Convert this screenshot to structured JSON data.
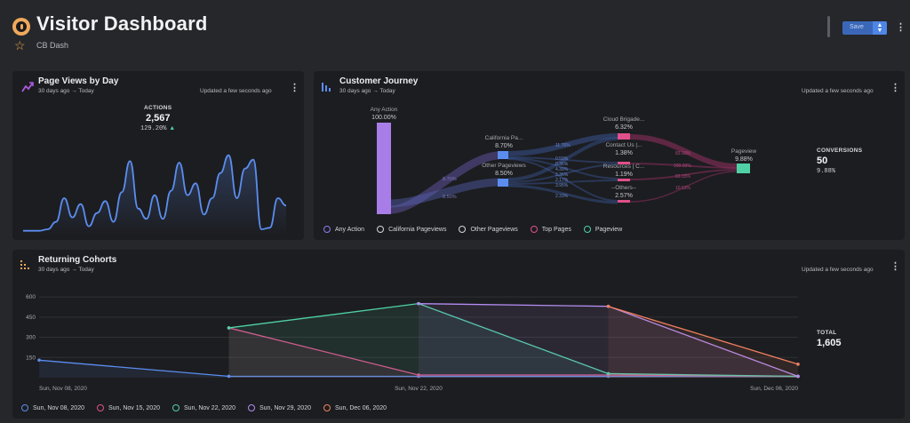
{
  "header": {
    "title": "Visitor Dashboard",
    "subtitle": "CB Dash",
    "save_label": "Save"
  },
  "page_views": {
    "title": "Page Views by Day",
    "range": "30 days ago → Today",
    "updated": "Updated a few seconds ago",
    "kpi_label": "ACTIONS",
    "kpi_value": "2,567",
    "kpi_change": "129.20%",
    "accent": "#5b8def"
  },
  "journey": {
    "title": "Customer Journey",
    "range": "30 days ago → Today",
    "updated": "Updated a few seconds ago",
    "kpi_label": "CONVERSIONS",
    "kpi_value": "50",
    "kpi_sub": "9.88%",
    "nodes": {
      "any": {
        "label": "Any Action",
        "pct": "100.00%"
      },
      "california": {
        "label": "California Pa...",
        "pct": "8.70%"
      },
      "other": {
        "label": "Other Pageviews",
        "pct": "8.50%"
      },
      "cloud": {
        "label": "Cloud Brigade...",
        "pct": "6.32%"
      },
      "contact": {
        "label": "Contact Us |...",
        "pct": "1.38%"
      },
      "resources": {
        "label": "Resources | C...",
        "pct": "1.19%"
      },
      "others": {
        "label": "--Others--",
        "pct": "2.57%"
      },
      "pageview": {
        "label": "Pageview",
        "pct": "9.88%"
      }
    },
    "link_labels": {
      "l1": "8.70%",
      "l2": "8.50%",
      "m1": "11.76%",
      "m2": "0.59%",
      "m3": "0.36%",
      "m4": "4.39%",
      "m5": "3.36%",
      "m6": "2.17%",
      "m7": "3.95%",
      "m8": "2.33%",
      "r1": "83.10%",
      "r2": "100.00%",
      "r3": "83.33%",
      "r4": "10.53%"
    },
    "legend": [
      {
        "label": "Any Action",
        "color": "#8b7cf6"
      },
      {
        "label": "California Pageviews",
        "color": "#d8d8dc"
      },
      {
        "label": "Other Pageviews",
        "color": "#d8d8dc"
      },
      {
        "label": "Top Pages",
        "color": "#e0508a"
      },
      {
        "label": "Pageview",
        "color": "#4fd1a5"
      }
    ]
  },
  "cohorts": {
    "title": "Returning Cohorts",
    "range": "30 days ago → Today",
    "updated": "Updated a few seconds ago",
    "kpi_label": "TOTAL",
    "kpi_value": "1,605",
    "legend": [
      {
        "label": "Sun, Nov 08, 2020",
        "color": "#5b8def"
      },
      {
        "label": "Sun, Nov 15, 2020",
        "color": "#e0508a"
      },
      {
        "label": "Sun, Nov 22, 2020",
        "color": "#4fd1a5"
      },
      {
        "label": "Sun, Nov 29, 2020",
        "color": "#b48cf0"
      },
      {
        "label": "Sun, Dec 06, 2020",
        "color": "#f07f5e"
      }
    ]
  },
  "chart_data": [
    {
      "type": "area",
      "title": "Page Views by Day",
      "x": [
        1,
        2,
        3,
        4,
        5,
        6,
        7,
        8,
        9,
        10,
        11,
        12,
        13,
        14,
        15,
        16,
        17,
        18,
        19,
        20,
        21,
        22,
        23,
        24,
        25,
        26,
        27,
        28,
        29,
        30,
        31,
        32,
        33
      ],
      "values": [
        2,
        2,
        2,
        3,
        8,
        24,
        11,
        20,
        5,
        14,
        22,
        8,
        28,
        49,
        17,
        10,
        26,
        10,
        29,
        48,
        26,
        34,
        13,
        24,
        41,
        53,
        24,
        44,
        50,
        3,
        4,
        24,
        19
      ],
      "ylim": [
        0,
        60
      ],
      "color": "#5b8def"
    },
    {
      "type": "area",
      "title": "Returning Cohorts",
      "x": [
        "Sun, Nov 08, 2020",
        "Sun, Nov 15, 2020",
        "Sun, Nov 22, 2020",
        "Sun, Nov 29, 2020",
        "Sun, Dec 06, 2020"
      ],
      "x_ticks": [
        "Sun, Nov 08, 2020",
        "Sun, Nov 22, 2020",
        "Sun, Dec 06, 2020"
      ],
      "y_ticks": [
        150,
        300,
        450,
        600
      ],
      "ylim": [
        0,
        660
      ],
      "series": [
        {
          "name": "Sun, Nov 08, 2020",
          "color": "#5b8def",
          "values": [
            130,
            10,
            10,
            10,
            10
          ]
        },
        {
          "name": "Sun, Nov 15, 2020",
          "color": "#e0508a",
          "values": [
            null,
            370,
            20,
            20,
            10
          ]
        },
        {
          "name": "Sun, Nov 22, 2020",
          "color": "#4fd1a5",
          "values": [
            null,
            370,
            550,
            30,
            10
          ]
        },
        {
          "name": "Sun, Nov 29, 2020",
          "color": "#b48cf0",
          "values": [
            null,
            null,
            550,
            530,
            10
          ]
        },
        {
          "name": "Sun, Dec 06, 2020",
          "color": "#f07f5e",
          "values": [
            null,
            null,
            null,
            530,
            100
          ]
        }
      ]
    }
  ]
}
